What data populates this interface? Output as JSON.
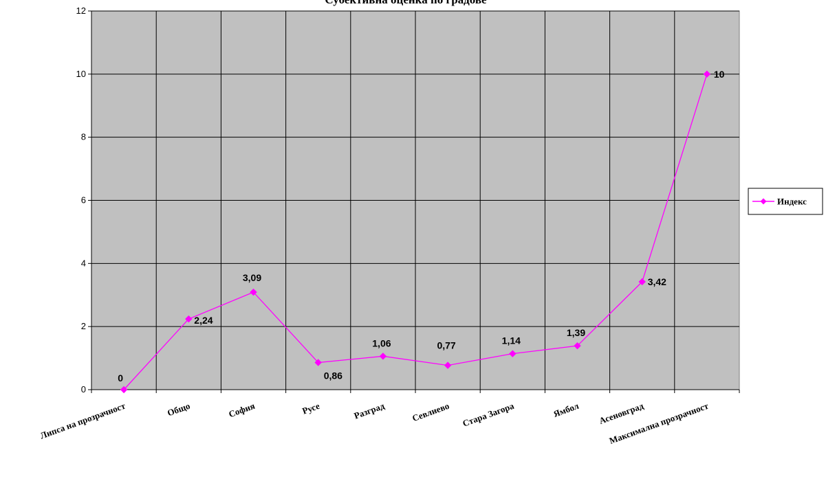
{
  "chart_data": {
    "type": "line",
    "title": "Субективна оценка по градове",
    "xlabel": "",
    "ylabel": "",
    "categories": [
      "Липса на прозрачност",
      "Общо",
      "София",
      "Русе",
      "Разград",
      "Севлиево",
      "Стара Загора",
      "Ямбол",
      "Асеновград",
      "Максимална прозрачност"
    ],
    "series": [
      {
        "name": "Индекс",
        "values": [
          0,
          2.24,
          3.09,
          0.86,
          1.06,
          0.77,
          1.14,
          1.39,
          3.42,
          10
        ],
        "labels": [
          "0",
          "2,24",
          "3,09",
          "0,86",
          "1,06",
          "0,77",
          "1,14",
          "1,39",
          "3,42",
          "10"
        ],
        "color": "#ff00ff"
      }
    ],
    "ylim": [
      0,
      12
    ],
    "yticks": [
      0,
      2,
      4,
      6,
      8,
      10,
      12
    ],
    "grid": true,
    "plot_background": "#c0c0c0",
    "legend_position": "right"
  }
}
